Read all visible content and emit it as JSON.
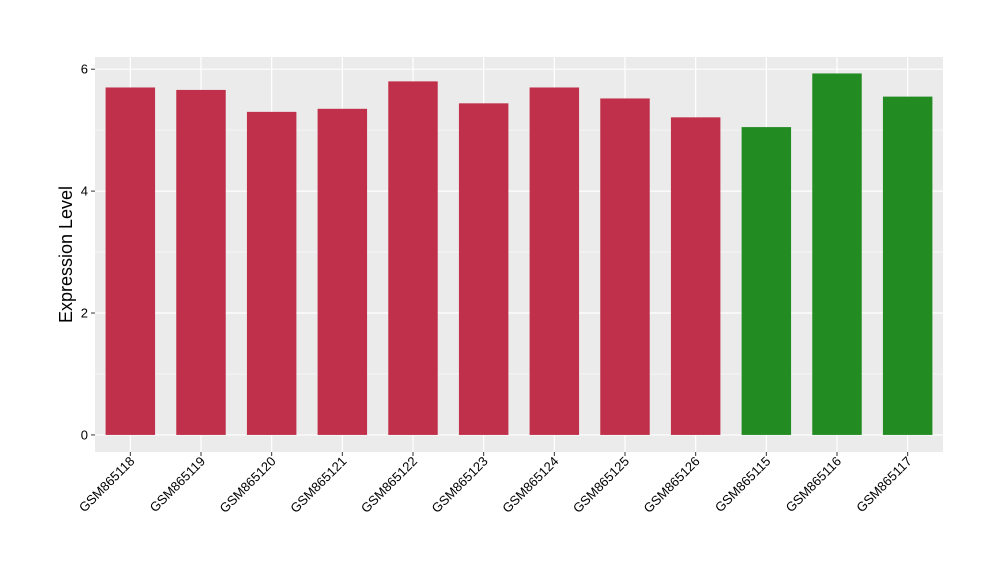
{
  "chart_data": {
    "type": "bar",
    "title": "",
    "xlabel": "",
    "ylabel": "Expression Level",
    "ylim": [
      -0.28,
      6.2
    ],
    "yticks": [
      0,
      2,
      4,
      6
    ],
    "grid": true,
    "legend": "none",
    "categories": [
      "GSM865118",
      "GSM865119",
      "GSM865120",
      "GSM865121",
      "GSM865122",
      "GSM865123",
      "GSM865124",
      "GSM865125",
      "GSM865126",
      "GSM865115",
      "GSM865116",
      "GSM865117"
    ],
    "values": [
      5.7,
      5.66,
      5.3,
      5.35,
      5.8,
      5.44,
      5.7,
      5.52,
      5.21,
      5.05,
      5.93,
      5.55
    ],
    "groups": [
      "red",
      "red",
      "red",
      "red",
      "red",
      "red",
      "red",
      "red",
      "red",
      "green",
      "green",
      "green"
    ],
    "colors": {
      "red": "#c0304a",
      "green": "#228b22",
      "panel": "#ebebeb",
      "grid_major": "#ffffff",
      "tick_text": "#000000"
    }
  }
}
